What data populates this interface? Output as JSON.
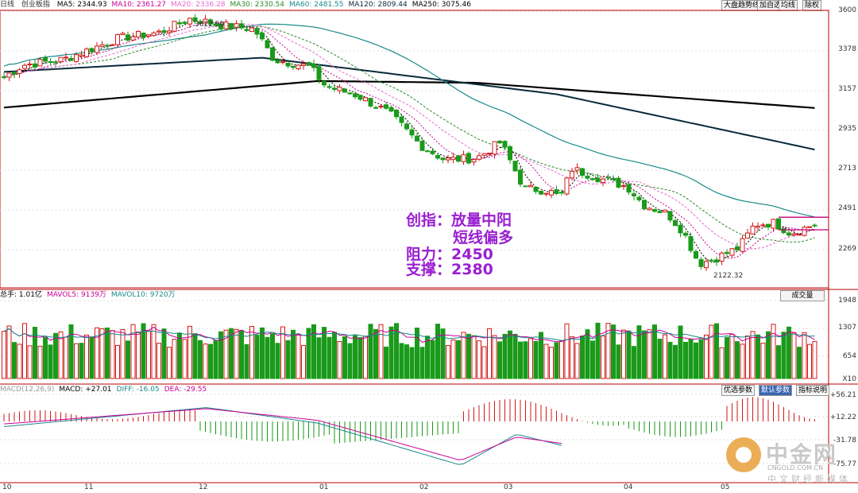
{
  "chart_data": [
    {
      "type": "candlestick",
      "title": "创业板指",
      "period": "日线",
      "ylim": [
        2050,
        3620
      ],
      "y_ticks": [
        "3600",
        "3378",
        "3157",
        "2935",
        "2713",
        "2491",
        "2269"
      ],
      "ma_legend": [
        {
          "label": "MA5: 2344.93",
          "color": "#000000"
        },
        {
          "label": "MA10: 2361.27",
          "color": "#c80096"
        },
        {
          "label": "MA20: 2336.28",
          "color": "#e86ad0"
        },
        {
          "label": "MA30: 2330.54",
          "color": "#2a8a2a"
        },
        {
          "label": "MA60: 2481.55",
          "color": "#1a8a8a"
        },
        {
          "label": "MA120: 2809.44",
          "color": "#0a2a3a"
        },
        {
          "label": "MA250: 3075.46",
          "color": "#000000"
        }
      ],
      "high_label": "3622.50",
      "low_label": "2122.32",
      "resistance_line": 2450,
      "support_line": 2380
    },
    {
      "type": "bar",
      "title": "总手",
      "legend": [
        {
          "label": "总手: 1.01亿",
          "color": "#000000"
        },
        {
          "label": "MAVOL5: 9139万",
          "color": "#c80096"
        },
        {
          "label": "MAVOL10: 9720万",
          "color": "#1a8a8a"
        }
      ],
      "y_ticks": [
        "1948",
        "1307",
        "654"
      ],
      "unit": "X10"
    },
    {
      "type": "line",
      "title": "MACD",
      "legend": [
        {
          "label": "MACD(12,26,9)",
          "color": "#999999"
        },
        {
          "label": "MACD: +27.01",
          "color": "#000000"
        },
        {
          "label": "DIFF: -16.05",
          "color": "#1a8a8a"
        },
        {
          "label": "DEA: -29.55",
          "color": "#c80096"
        }
      ],
      "y_ticks": [
        "+56.21",
        "+12.22",
        "-31.78",
        "-75.77"
      ]
    }
  ],
  "x_labels": [
    "10",
    "11",
    "12",
    "01",
    "02",
    "03",
    "04",
    "05"
  ],
  "annotation": {
    "line1": "创指：放量中阳",
    "line2": "短线偏多",
    "line3": "阻力：2450",
    "line4": "支撑：2380"
  },
  "top_buttons": [
    "大盘趋势线",
    "加自选",
    "均线",
    "除权"
  ],
  "vol_button": "成交量",
  "macd_buttons": [
    "优选参数",
    "默认参数",
    "指标说明"
  ],
  "watermark": {
    "brand": "中金网",
    "url": "CNGOLD.COM.CN",
    "sub": "中文财经新媒体"
  }
}
